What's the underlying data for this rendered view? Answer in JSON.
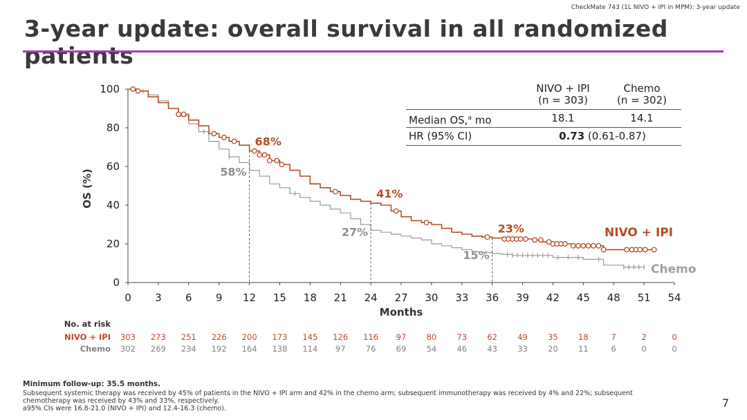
{
  "header": {
    "tag": "CheckMate 743 (1L NIVO + IPI in MPM): 3-year update",
    "title": "3-year update: overall survival in all randomized patients"
  },
  "colors": {
    "nivo_ipi": "#b84b27",
    "chemo": "#9a9a9a",
    "rule": "#a63ab6"
  },
  "stats_table": {
    "col1_header_line1": "NIVO + IPI",
    "col1_header_line2": "(n = 303)",
    "col2_header_line1": "Chemo",
    "col2_header_line2": "(n = 302)",
    "row1_label": "Median OS,",
    "row1_label_sup": "a",
    "row1_label_suffix": " mo",
    "row1_col1": "18.1",
    "row1_col2": "14.1",
    "row2_label": "HR (95% CI)",
    "row2_value_bold": "0.73",
    "row2_value_rest": " (0.61-0.87)"
  },
  "chart_data": {
    "type": "line",
    "xlabel": "Months",
    "ylabel": "OS (%)",
    "xlim": [
      0,
      54
    ],
    "ylim": [
      0,
      100
    ],
    "x_ticks": [
      0,
      3,
      6,
      9,
      12,
      15,
      18,
      21,
      24,
      27,
      30,
      33,
      36,
      39,
      42,
      45,
      48,
      51,
      54
    ],
    "y_ticks": [
      0,
      20,
      40,
      60,
      80,
      100
    ],
    "series": [
      {
        "name": "NIVO + IPI",
        "color": "#b84b27",
        "points": [
          [
            0,
            100
          ],
          [
            0.5,
            100
          ],
          [
            1,
            99
          ],
          [
            2,
            96
          ],
          [
            3,
            93
          ],
          [
            4,
            90
          ],
          [
            5,
            87
          ],
          [
            6,
            84
          ],
          [
            7,
            81
          ],
          [
            8,
            77
          ],
          [
            9,
            75
          ],
          [
            10,
            73
          ],
          [
            11,
            71
          ],
          [
            12,
            68
          ],
          [
            13,
            66
          ],
          [
            14,
            63
          ],
          [
            15,
            61
          ],
          [
            16,
            58
          ],
          [
            17,
            55
          ],
          [
            18,
            51
          ],
          [
            19,
            49
          ],
          [
            20,
            47
          ],
          [
            21,
            45
          ],
          [
            22,
            43
          ],
          [
            23,
            42
          ],
          [
            24,
            41
          ],
          [
            25,
            40
          ],
          [
            26,
            37
          ],
          [
            27,
            34
          ],
          [
            28,
            32
          ],
          [
            29,
            31
          ],
          [
            30,
            30
          ],
          [
            31,
            28
          ],
          [
            32,
            26
          ],
          [
            33,
            25
          ],
          [
            34,
            24
          ],
          [
            35,
            23.5
          ],
          [
            36,
            23
          ],
          [
            37,
            22.5
          ],
          [
            39,
            22.5
          ],
          [
            40,
            22
          ],
          [
            41,
            21
          ],
          [
            42,
            20
          ],
          [
            43,
            20
          ],
          [
            44,
            19
          ],
          [
            45,
            19
          ],
          [
            46,
            19
          ],
          [
            47,
            17
          ],
          [
            48,
            17
          ],
          [
            49,
            17
          ],
          [
            50,
            17
          ],
          [
            51,
            17
          ],
          [
            52,
            17
          ]
        ],
        "censor_x": [
          0.5,
          1,
          5,
          5.5,
          8.5,
          9.5,
          10.5,
          12.5,
          13,
          13.5,
          14,
          14.7,
          15.2,
          20.5,
          26.5,
          29.5,
          35.5,
          37.2,
          37.6,
          38,
          38.4,
          38.8,
          39.3,
          40.2,
          40.8,
          41.6,
          42,
          42.4,
          42.8,
          43.2,
          44,
          44.5,
          45,
          45.5,
          46,
          46.5,
          47,
          49.3,
          49.8,
          50.2,
          50.6,
          51.1,
          52
        ]
      },
      {
        "name": "Chemo",
        "color": "#9a9a9a",
        "points": [
          [
            0,
            100
          ],
          [
            1,
            99
          ],
          [
            2,
            97
          ],
          [
            3,
            94
          ],
          [
            4,
            90
          ],
          [
            5,
            86
          ],
          [
            6,
            82
          ],
          [
            7,
            78
          ],
          [
            8,
            73
          ],
          [
            9,
            69
          ],
          [
            10,
            65
          ],
          [
            11,
            62
          ],
          [
            12,
            58
          ],
          [
            13,
            55
          ],
          [
            14,
            51
          ],
          [
            15,
            49
          ],
          [
            16,
            46
          ],
          [
            17,
            44
          ],
          [
            18,
            42
          ],
          [
            19,
            40
          ],
          [
            20,
            38
          ],
          [
            21,
            36
          ],
          [
            22,
            33
          ],
          [
            23,
            30
          ],
          [
            24,
            27
          ],
          [
            25,
            26
          ],
          [
            26,
            25
          ],
          [
            27,
            24
          ],
          [
            28,
            23
          ],
          [
            29,
            22
          ],
          [
            30,
            20
          ],
          [
            31,
            19
          ],
          [
            32,
            18
          ],
          [
            33,
            17
          ],
          [
            34,
            16
          ],
          [
            35,
            15.5
          ],
          [
            36,
            15
          ],
          [
            37,
            14.5
          ],
          [
            38,
            14
          ],
          [
            40,
            14
          ],
          [
            42,
            13
          ],
          [
            44,
            13
          ],
          [
            45,
            12
          ],
          [
            46,
            12
          ],
          [
            47,
            9
          ],
          [
            48,
            9
          ],
          [
            49,
            8
          ],
          [
            50,
            8
          ],
          [
            51,
            8
          ]
        ],
        "censor_x": [
          1.5,
          7.5,
          10,
          16.5,
          37.5,
          38,
          38.5,
          39,
          39.5,
          40,
          40.5,
          41,
          41.5,
          42.5,
          43.5,
          44.5,
          46.5,
          49,
          49.5,
          50,
          50.5,
          51
        ]
      }
    ],
    "annotations": [
      {
        "series": "NIVO + IPI",
        "x": 12,
        "y": 68,
        "label": "68%"
      },
      {
        "series": "Chemo",
        "x": 12,
        "y": 58,
        "label": "58%"
      },
      {
        "series": "NIVO + IPI",
        "x": 24,
        "y": 41,
        "label": "41%"
      },
      {
        "series": "Chemo",
        "x": 24,
        "y": 27,
        "label": "27%"
      },
      {
        "series": "NIVO + IPI",
        "x": 36,
        "y": 23,
        "label": "23%"
      },
      {
        "series": "Chemo",
        "x": 36,
        "y": 15,
        "label": "15%"
      }
    ],
    "series_labels": [
      "NIVO + IPI",
      "Chemo"
    ],
    "risk_table": {
      "title": "No. at risk",
      "rows": [
        {
          "label": "NIVO + IPI",
          "values": [
            "303",
            "273",
            "251",
            "226",
            "200",
            "173",
            "145",
            "126",
            "116",
            "97",
            "80",
            "73",
            "62",
            "49",
            "35",
            "18",
            "7",
            "2",
            "0"
          ]
        },
        {
          "label": "Chemo",
          "values": [
            "302",
            "269",
            "234",
            "192",
            "164",
            "138",
            "114",
            "97",
            "76",
            "69",
            "54",
            "46",
            "43",
            "33",
            "20",
            "11",
            "6",
            "0",
            "0"
          ]
        }
      ]
    }
  },
  "footnotes": {
    "line1": "Minimum follow-up: 35.5 months.",
    "line2": "Subsequent systemic therapy was received by 45% of patients in the NIVO + IPI arm and 42% in the chemo arm; subsequent immunotherapy was received by 4% and 22%; subsequent chemotherapy was received by 43% and 33%, respectively.",
    "line3": "a95% CIs were 16.8-21.0 (NIVO + IPI) and 12.4-16.3 (chemo)."
  },
  "page_number": "7"
}
